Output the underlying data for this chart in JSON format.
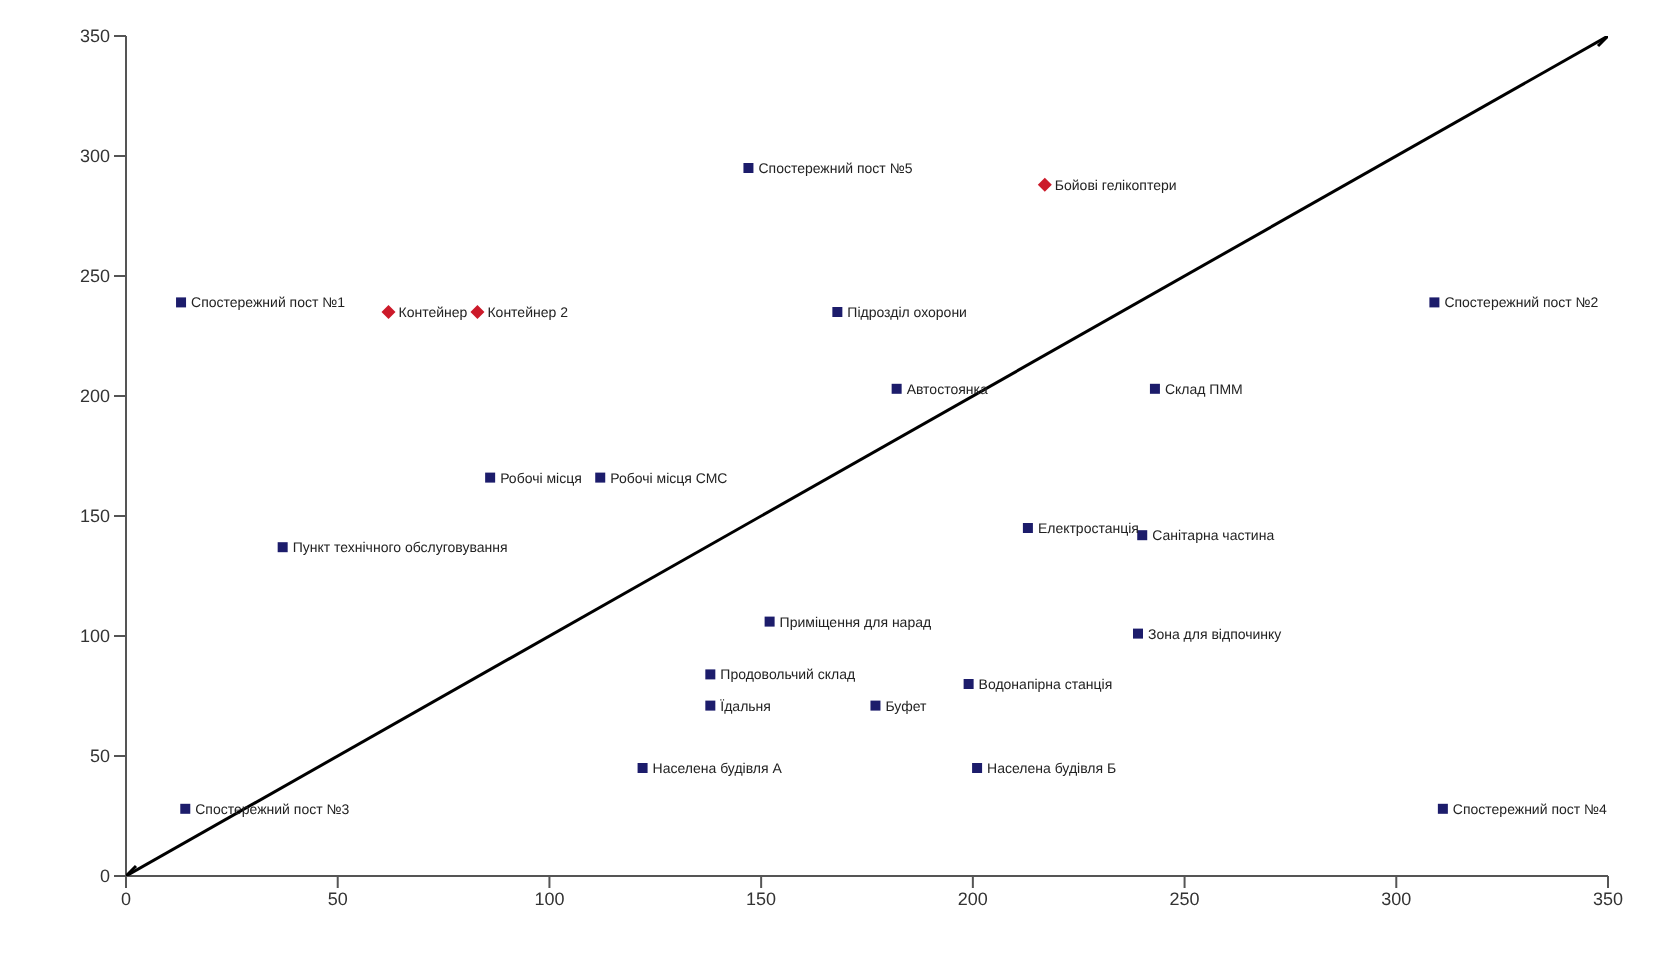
{
  "chart_data": {
    "type": "scatter",
    "xlim": [
      0,
      350
    ],
    "ylim": [
      0,
      350
    ],
    "xticks": [
      0,
      50,
      100,
      150,
      200,
      250,
      300,
      350
    ],
    "yticks": [
      0,
      50,
      100,
      150,
      200,
      250,
      300,
      350
    ],
    "grid": false,
    "legend": false,
    "marker": "square",
    "series": [
      {
        "color": "#1c1c6b",
        "x": [
          13,
          147,
          309,
          168,
          182,
          243,
          86,
          112,
          37,
          213,
          240,
          152,
          239,
          138,
          199,
          138,
          177,
          122,
          201,
          14,
          311
        ],
        "values": [
          239,
          295,
          239,
          235,
          203,
          203,
          166,
          166,
          137,
          145,
          142,
          106,
          101,
          84,
          80,
          71,
          71,
          45,
          45,
          28,
          28
        ]
      },
      {
        "type": "scatter",
        "color": "#cc1a2a",
        "marker": "diamond",
        "x": [
          62,
          83,
          217
        ],
        "values": [
          235,
          235,
          288
        ]
      },
      {
        "type": "line",
        "color": "#000000",
        "marker": "cross",
        "line_style": "solid",
        "x": [
          0,
          350
        ],
        "values": [
          0,
          350
        ]
      }
    ],
    "annotations": [
      {
        "text": "Спостережний пост №1",
        "x": 13,
        "y": 239
      },
      {
        "text": "Спостережний пост №5",
        "x": 147,
        "y": 295
      },
      {
        "text": "Спостережний пост №2",
        "x": 309,
        "y": 239
      },
      {
        "text": "Підрозділ охорони",
        "x": 168,
        "y": 235
      },
      {
        "text": "Автостоянка",
        "x": 182,
        "y": 203
      },
      {
        "text": "Склад ПММ",
        "x": 243,
        "y": 203
      },
      {
        "text": "Робочі місця",
        "x": 86,
        "y": 166
      },
      {
        "text": "Робочі місця СМС",
        "x": 112,
        "y": 166
      },
      {
        "text": "Пункт технічного обслуговування",
        "x": 37,
        "y": 137
      },
      {
        "text": "Електростанція",
        "x": 213,
        "y": 145
      },
      {
        "text": "Санітарна частина",
        "x": 240,
        "y": 142
      },
      {
        "text": "Приміщення для нарад",
        "x": 152,
        "y": 106
      },
      {
        "text": "Зона для відпочинку",
        "x": 239,
        "y": 101
      },
      {
        "text": "Продовольчий склад",
        "x": 138,
        "y": 84
      },
      {
        "text": "Водонапірна станція",
        "x": 199,
        "y": 80
      },
      {
        "text": "Їдальня",
        "x": 138,
        "y": 71
      },
      {
        "text": "Буфет",
        "x": 177,
        "y": 71
      },
      {
        "text": "Населена будівля А",
        "x": 122,
        "y": 45
      },
      {
        "text": "Населена будівля Б",
        "x": 201,
        "y": 45
      },
      {
        "text": "Спостережний пост №3",
        "x": 14,
        "y": 28
      },
      {
        "text": "Спостережний пост №4",
        "x": 311,
        "y": 28
      },
      {
        "text": "Контейнер",
        "x": 62,
        "y": 235
      },
      {
        "text": "Контейнер 2",
        "x": 83,
        "y": 235
      },
      {
        "text": "Бойові гелікоптери",
        "x": 217,
        "y": 288
      }
    ]
  }
}
